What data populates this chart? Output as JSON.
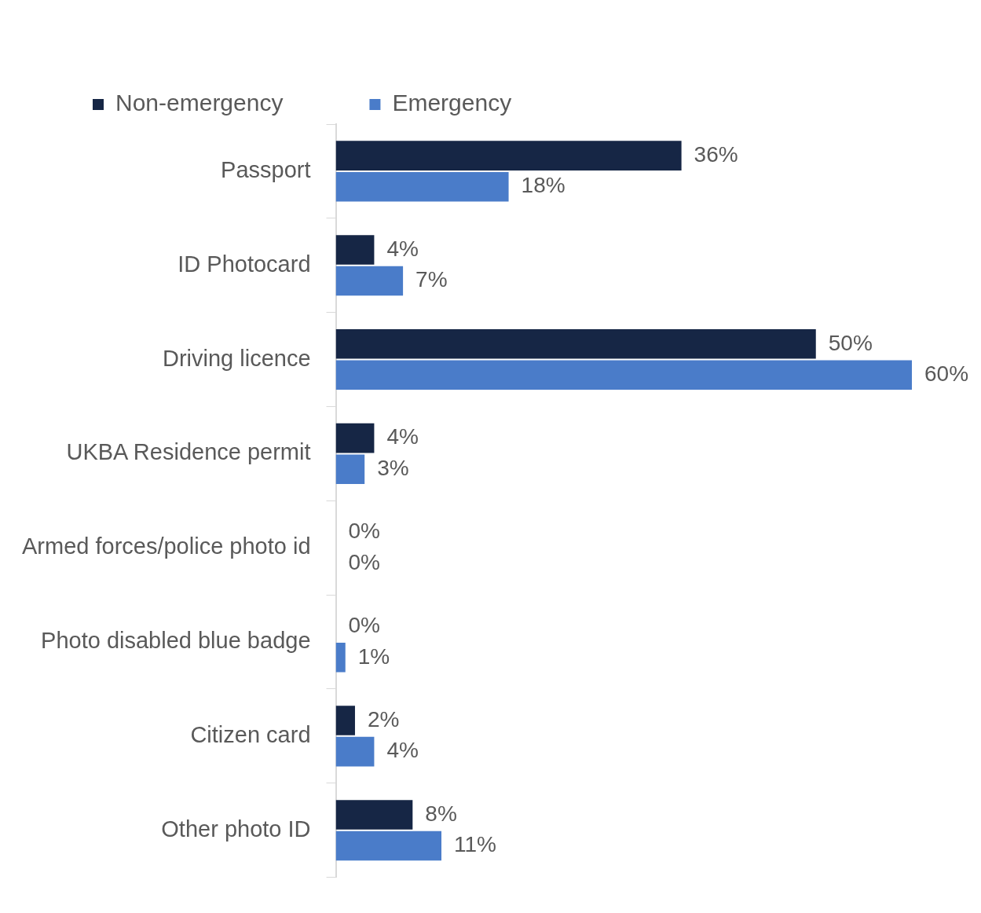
{
  "chart_data": {
    "type": "bar",
    "orientation": "horizontal",
    "legend": "top left",
    "categories": [
      "Passport",
      "ID Photocard",
      "Driving licence",
      "UKBA Residence permit",
      "Armed forces/police photo id",
      "Photo disabled blue badge",
      "Citizen card",
      "Other photo ID"
    ],
    "series": [
      {
        "name": "Non-emergency",
        "color": "#162645",
        "values": [
          36,
          4,
          50,
          4,
          0,
          0,
          2,
          8
        ],
        "value_labels": [
          "36%",
          "4%",
          "50%",
          "4%",
          "0%",
          "0%",
          "2%",
          "8%"
        ]
      },
      {
        "name": "Emergency",
        "color": "#4a7cc9",
        "values": [
          18,
          7,
          60,
          3,
          0,
          1,
          4,
          11
        ],
        "value_labels": [
          "18%",
          "7%",
          "60%",
          "3%",
          "0%",
          "1%",
          "4%",
          "11%"
        ]
      }
    ]
  }
}
